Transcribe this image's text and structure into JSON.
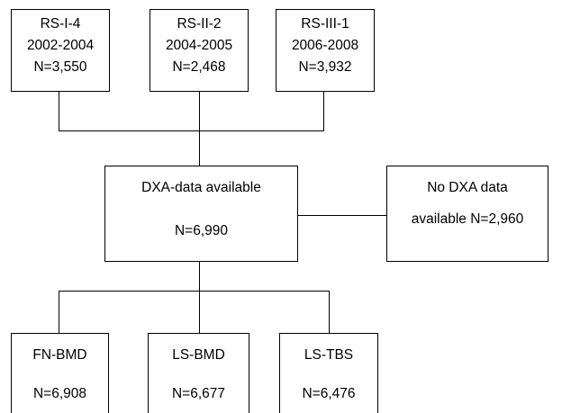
{
  "top_boxes": [
    {
      "name": "RS-I-4",
      "years": "2002-2004",
      "n": "N=3,550"
    },
    {
      "name": "RS-II-2",
      "years": "2004-2005",
      "n": "N=2,468"
    },
    {
      "name": "RS-III-1",
      "years": "2006-2008",
      "n": "N=3,932"
    }
  ],
  "dxa_box": {
    "label": "DXA-data available",
    "n": "N=6,990"
  },
  "excluded_box": {
    "line1": "No DXA data",
    "line2": "available N=2,960"
  },
  "bottom_boxes": [
    {
      "label": "FN-BMD",
      "n": "N=6,908"
    },
    {
      "label": "LS-BMD",
      "n": "N=6,677"
    },
    {
      "label": "LS-TBS",
      "n": "N=6,476"
    }
  ]
}
